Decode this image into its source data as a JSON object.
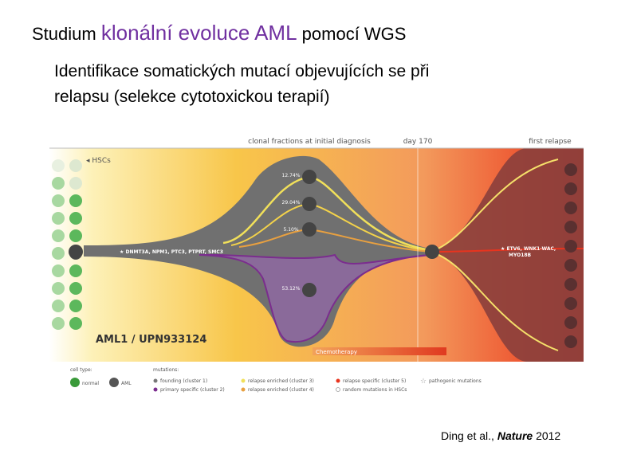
{
  "header": {
    "title_start": "Studium ",
    "title_highlight": "klonální evoluce AML",
    "title_end": " pomocí WGS",
    "subtitle_lines": [
      "Identifikace somatických mutací objevujících se při",
      "relapsu (selekce cytotoxickou terapií)"
    ]
  },
  "figure": {
    "timeline": [
      "clonal fractions at initial diagnosis",
      "day 170",
      "first relapse"
    ],
    "hscs": "HSCs",
    "clone_fractions": [
      "12.74%",
      "29.04%",
      "5.10%",
      "53.12%"
    ],
    "founding_genes": "DNMT3A, NPM1, PTC3, PTPRT, SMC3",
    "relapse_genes": [
      "ETV6, WNK1-WAC,",
      "MYO18B"
    ],
    "case": "AML1 / UPN933124",
    "therapy": "Chemotherapy",
    "legend": {
      "cell_type_title": "cell type:",
      "cell_types": [
        "normal",
        "AML"
      ],
      "mutations_title": "mutations:",
      "mutations": [
        "founding (cluster 1)",
        "primary specific (cluster 2)",
        "relapse enriched (cluster 3)",
        "relapse enriched (cluster 4)",
        "relapse specific (cluster 5)",
        "random mutations in HSCs",
        "pathogenic mutations"
      ]
    }
  },
  "citation": {
    "authors": "Ding et al., ",
    "journal": "Nature",
    "year": " 2012"
  }
}
